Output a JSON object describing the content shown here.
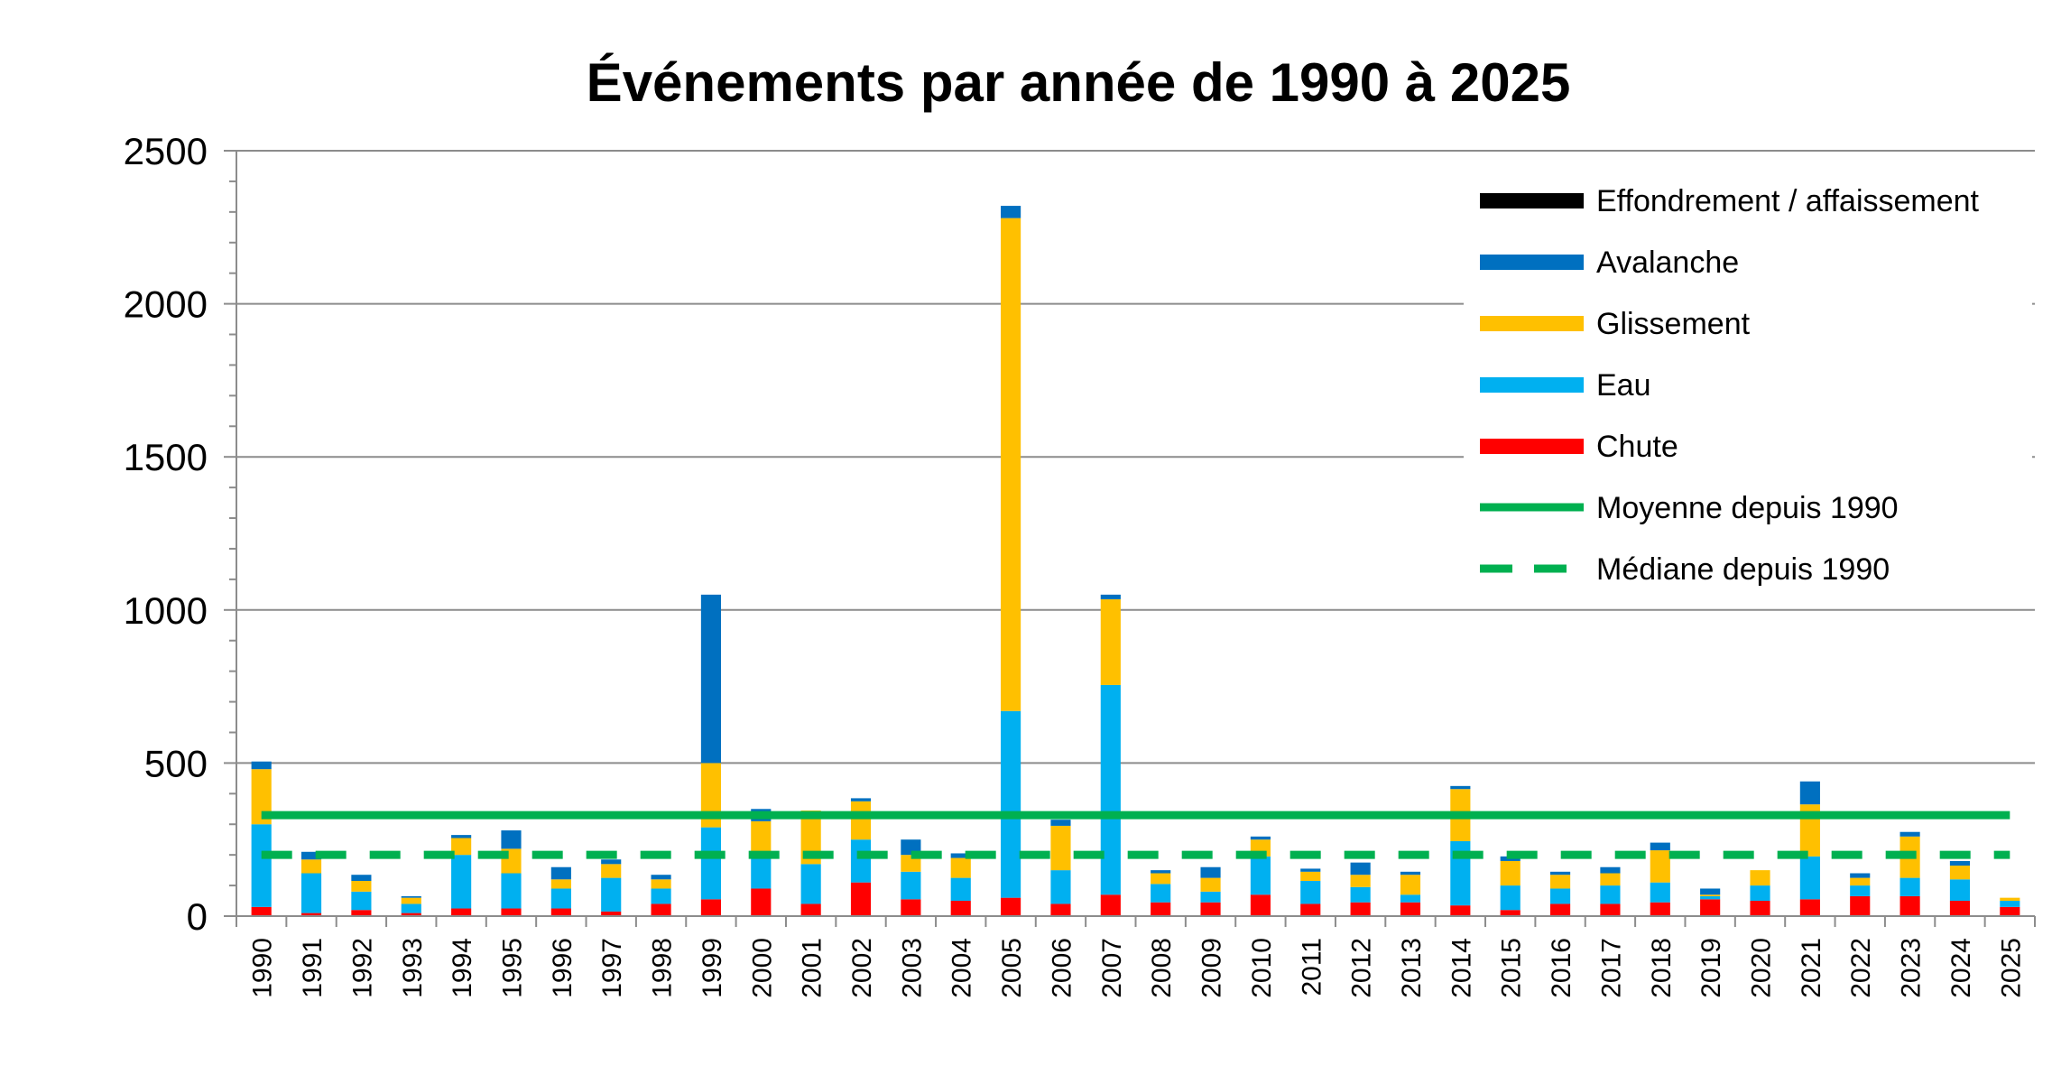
{
  "chart_data": {
    "type": "bar",
    "stacked": true,
    "title": "Événements par année de 1990 à 2025",
    "xlabel": "",
    "ylabel": "",
    "ylim": [
      0,
      2500
    ],
    "yticks": [
      0,
      500,
      1000,
      1500,
      2000,
      2500
    ],
    "grid": true,
    "legend_position": "top-right",
    "categories": [
      "1990",
      "1991",
      "1992",
      "1993",
      "1994",
      "1995",
      "1996",
      "1997",
      "1998",
      "1999",
      "2000",
      "2001",
      "2002",
      "2003",
      "2004",
      "2005",
      "2006",
      "2007",
      "2008",
      "2009",
      "2010",
      "2011",
      "2012",
      "2013",
      "2014",
      "2015",
      "2016",
      "2017",
      "2018",
      "2019",
      "2020",
      "2021",
      "2022",
      "2023",
      "2024",
      "2025"
    ],
    "series": [
      {
        "name": "Chute",
        "color": "#ff0000",
        "values": [
          30,
          10,
          20,
          10,
          25,
          25,
          25,
          15,
          40,
          55,
          90,
          40,
          110,
          55,
          50,
          60,
          40,
          70,
          45,
          45,
          70,
          40,
          45,
          45,
          35,
          20,
          40,
          40,
          45,
          55,
          50,
          55,
          65,
          65,
          50,
          30
        ]
      },
      {
        "name": "Eau",
        "color": "#00b0f0",
        "values": [
          270,
          130,
          60,
          30,
          175,
          115,
          65,
          110,
          50,
          235,
          110,
          130,
          140,
          90,
          75,
          610,
          110,
          685,
          60,
          35,
          125,
          75,
          50,
          25,
          210,
          80,
          50,
          60,
          65,
          10,
          50,
          140,
          35,
          60,
          70,
          20
        ]
      },
      {
        "name": "Glissement",
        "color": "#ffc000",
        "values": [
          180,
          45,
          35,
          20,
          55,
          80,
          30,
          45,
          30,
          210,
          110,
          175,
          125,
          55,
          65,
          1610,
          145,
          280,
          35,
          45,
          55,
          30,
          40,
          65,
          170,
          80,
          45,
          40,
          105,
          5,
          50,
          170,
          25,
          135,
          45,
          10
        ]
      },
      {
        "name": "Avalanche",
        "color": "#0070c0",
        "values": [
          25,
          25,
          20,
          5,
          10,
          60,
          40,
          15,
          15,
          550,
          40,
          0,
          10,
          50,
          15,
          40,
          20,
          15,
          10,
          35,
          10,
          10,
          40,
          10,
          10,
          15,
          10,
          20,
          25,
          20,
          0,
          75,
          15,
          15,
          15,
          0
        ]
      },
      {
        "name": "Effondrement / affaissement",
        "color": "#000000",
        "values": [
          0,
          0,
          0,
          0,
          0,
          0,
          0,
          0,
          0,
          0,
          0,
          0,
          0,
          0,
          0,
          0,
          0,
          0,
          0,
          0,
          0,
          0,
          0,
          0,
          0,
          0,
          0,
          0,
          0,
          0,
          0,
          0,
          0,
          0,
          0,
          0
        ]
      }
    ],
    "reference_lines": [
      {
        "name": "Moyenne depuis 1990",
        "color": "#00b050",
        "style": "solid",
        "value": 330
      },
      {
        "name": "Médiane depuis 1990",
        "color": "#00b050",
        "style": "dashed",
        "value": 200
      }
    ],
    "legend_order": [
      "Effondrement / affaissement",
      "Avalanche",
      "Glissement",
      "Eau",
      "Chute",
      "Moyenne depuis 1990",
      "Médiane depuis 1990"
    ]
  }
}
